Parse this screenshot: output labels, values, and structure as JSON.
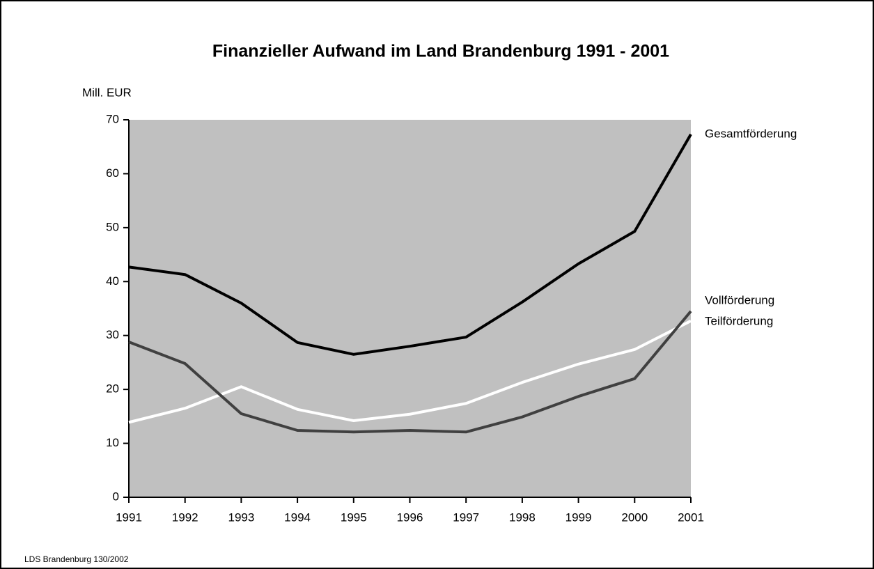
{
  "chart_data": {
    "type": "line",
    "title": "Finanzieller Aufwand im Land Brandenburg 1991 - 2001",
    "y_label": "Mill. EUR",
    "source": "LDS Brandenburg 130/2002",
    "x": [
      1991,
      1992,
      1993,
      1994,
      1995,
      1996,
      1997,
      1998,
      1999,
      2000,
      2001
    ],
    "xlim": [
      1991,
      2001
    ],
    "xticks": [
      1991,
      1992,
      1993,
      1994,
      1995,
      1996,
      1997,
      1998,
      1999,
      2000,
      2001
    ],
    "ylim": [
      0,
      70
    ],
    "yticks": [
      0,
      10,
      20,
      30,
      40,
      50,
      60,
      70
    ],
    "plot_background": "#c0c0c0",
    "series": [
      {
        "name": "Gesamtförderung",
        "color": "#000000",
        "values": [
          42.7,
          41.3,
          36.0,
          28.7,
          26.5,
          28.0,
          29.7,
          36.2,
          43.3,
          49.3,
          67.3
        ]
      },
      {
        "name": "Vollförderung",
        "color": "#404040",
        "values": [
          28.8,
          24.8,
          15.5,
          12.4,
          12.1,
          12.4,
          12.1,
          14.9,
          18.7,
          22.0,
          34.5
        ]
      },
      {
        "name": "Teilförderung",
        "color": "#ffffff",
        "values": [
          13.9,
          16.5,
          20.5,
          16.3,
          14.2,
          15.4,
          17.4,
          21.3,
          24.7,
          27.4,
          32.7
        ]
      }
    ]
  }
}
